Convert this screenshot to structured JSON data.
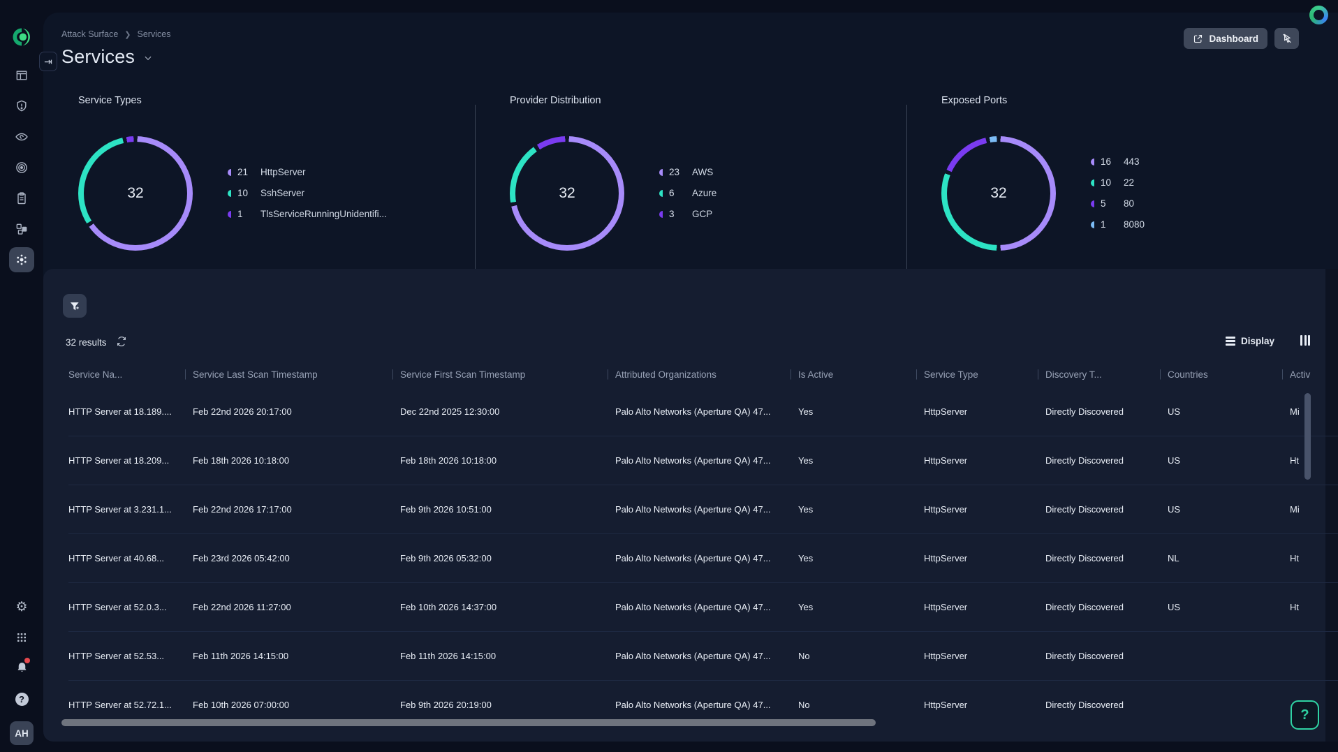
{
  "header": {
    "breadcrumb": [
      "Attack Surface",
      "Services"
    ],
    "title": "Services",
    "dashboard_button": "Dashboard"
  },
  "sidebar": {
    "items": [
      "logo",
      "dashboard-icon",
      "shield-alert-icon",
      "eye-icon",
      "target-icon",
      "clipboard-icon",
      "assets-icon",
      "services-hub-icon"
    ],
    "selected_item": "services-hub-icon",
    "bottom_items": [
      "gear-icon",
      "apps-grid-icon",
      "bell-icon",
      "help-icon"
    ],
    "bell_has_badge": true,
    "avatar_initials": "AH"
  },
  "chart_data": [
    {
      "type": "pie",
      "title": "Service Types",
      "total": "32",
      "legend_position": "right",
      "segments": [
        {
          "label": "HttpServer",
          "value": 21,
          "color": "#a78bfa"
        },
        {
          "label": "SshServer",
          "value": 10,
          "color": "#2de3c4"
        },
        {
          "label": "TlsServiceRunningUnidentifi...",
          "value": 1,
          "color": "#7a3bf0"
        }
      ]
    },
    {
      "type": "pie",
      "title": "Provider Distribution",
      "total": "32",
      "legend_position": "right",
      "segments": [
        {
          "label": "AWS",
          "value": 23,
          "color": "#a78bfa"
        },
        {
          "label": "Azure",
          "value": 6,
          "color": "#2de3c4"
        },
        {
          "label": "GCP",
          "value": 3,
          "color": "#7a3bf0"
        }
      ]
    },
    {
      "type": "pie",
      "title": "Exposed Ports",
      "total": "32",
      "legend_position": "right",
      "segments": [
        {
          "label": "443",
          "value": 16,
          "color": "#a78bfa"
        },
        {
          "label": "22",
          "value": 10,
          "color": "#2de3c4"
        },
        {
          "label": "80",
          "value": 5,
          "color": "#7a3bf0"
        },
        {
          "label": "8080",
          "value": 1,
          "color": "#7cbcf5"
        }
      ]
    }
  ],
  "table": {
    "results_label": "32 results",
    "display_label": "Display",
    "columns": [
      "Service Na...",
      "Service Last Scan Timestamp",
      "Service First Scan Timestamp",
      "Attributed Organizations",
      "Is Active",
      "Service Type",
      "Discovery T...",
      "Countries",
      "Activ"
    ],
    "rows": [
      [
        "HTTP Server at 18.189....",
        "Feb 22nd 2026 20:17:00",
        "Dec 22nd 2025 12:30:00",
        "Palo Alto Networks (Aperture QA) 47...",
        "Yes",
        "HttpServer",
        "Directly Discovered",
        "US",
        "Mi"
      ],
      [
        "HTTP Server at 18.209...",
        "Feb 18th 2026 10:18:00",
        "Feb 18th 2026 10:18:00",
        "Palo Alto Networks (Aperture QA) 47...",
        "Yes",
        "HttpServer",
        "Directly Discovered",
        "US",
        "Ht"
      ],
      [
        "HTTP Server at 3.231.1...",
        "Feb 22nd 2026 17:17:00",
        "Feb 9th 2026 10:51:00",
        "Palo Alto Networks (Aperture QA) 47...",
        "Yes",
        "HttpServer",
        "Directly Discovered",
        "US",
        "Mi"
      ],
      [
        "HTTP Server at 40.68...",
        "Feb 23rd 2026 05:42:00",
        "Feb 9th 2026 05:32:00",
        "Palo Alto Networks (Aperture QA) 47...",
        "Yes",
        "HttpServer",
        "Directly Discovered",
        "NL",
        "Ht"
      ],
      [
        "HTTP Server at 52.0.3...",
        "Feb 22nd 2026 11:27:00",
        "Feb 10th 2026 14:37:00",
        "Palo Alto Networks (Aperture QA) 47...",
        "Yes",
        "HttpServer",
        "Directly Discovered",
        "US",
        "Ht"
      ],
      [
        "HTTP Server at 52.53...",
        "Feb 11th 2026 14:15:00",
        "Feb 11th 2026 14:15:00",
        "Palo Alto Networks (Aperture QA) 47...",
        "No",
        "HttpServer",
        "Directly Discovered",
        "",
        ""
      ],
      [
        "HTTP Server at 52.72.1...",
        "Feb 10th 2026 07:00:00",
        "Feb 9th 2026 20:19:00",
        "Palo Alto Networks (Aperture QA) 47...",
        "No",
        "HttpServer",
        "Directly Discovered",
        "",
        ""
      ]
    ]
  },
  "colors": {
    "page_bg": "#0a0f1d",
    "panel_bg": "#0d1526",
    "table_panel_bg": "#151d30",
    "accent_purple": "#a78bfa",
    "accent_teal": "#2de3c4",
    "accent_violet": "#7a3bf0",
    "accent_blue": "#7cbcf5",
    "notification_red": "#e5484d",
    "help_green": "#2fd3a3"
  }
}
